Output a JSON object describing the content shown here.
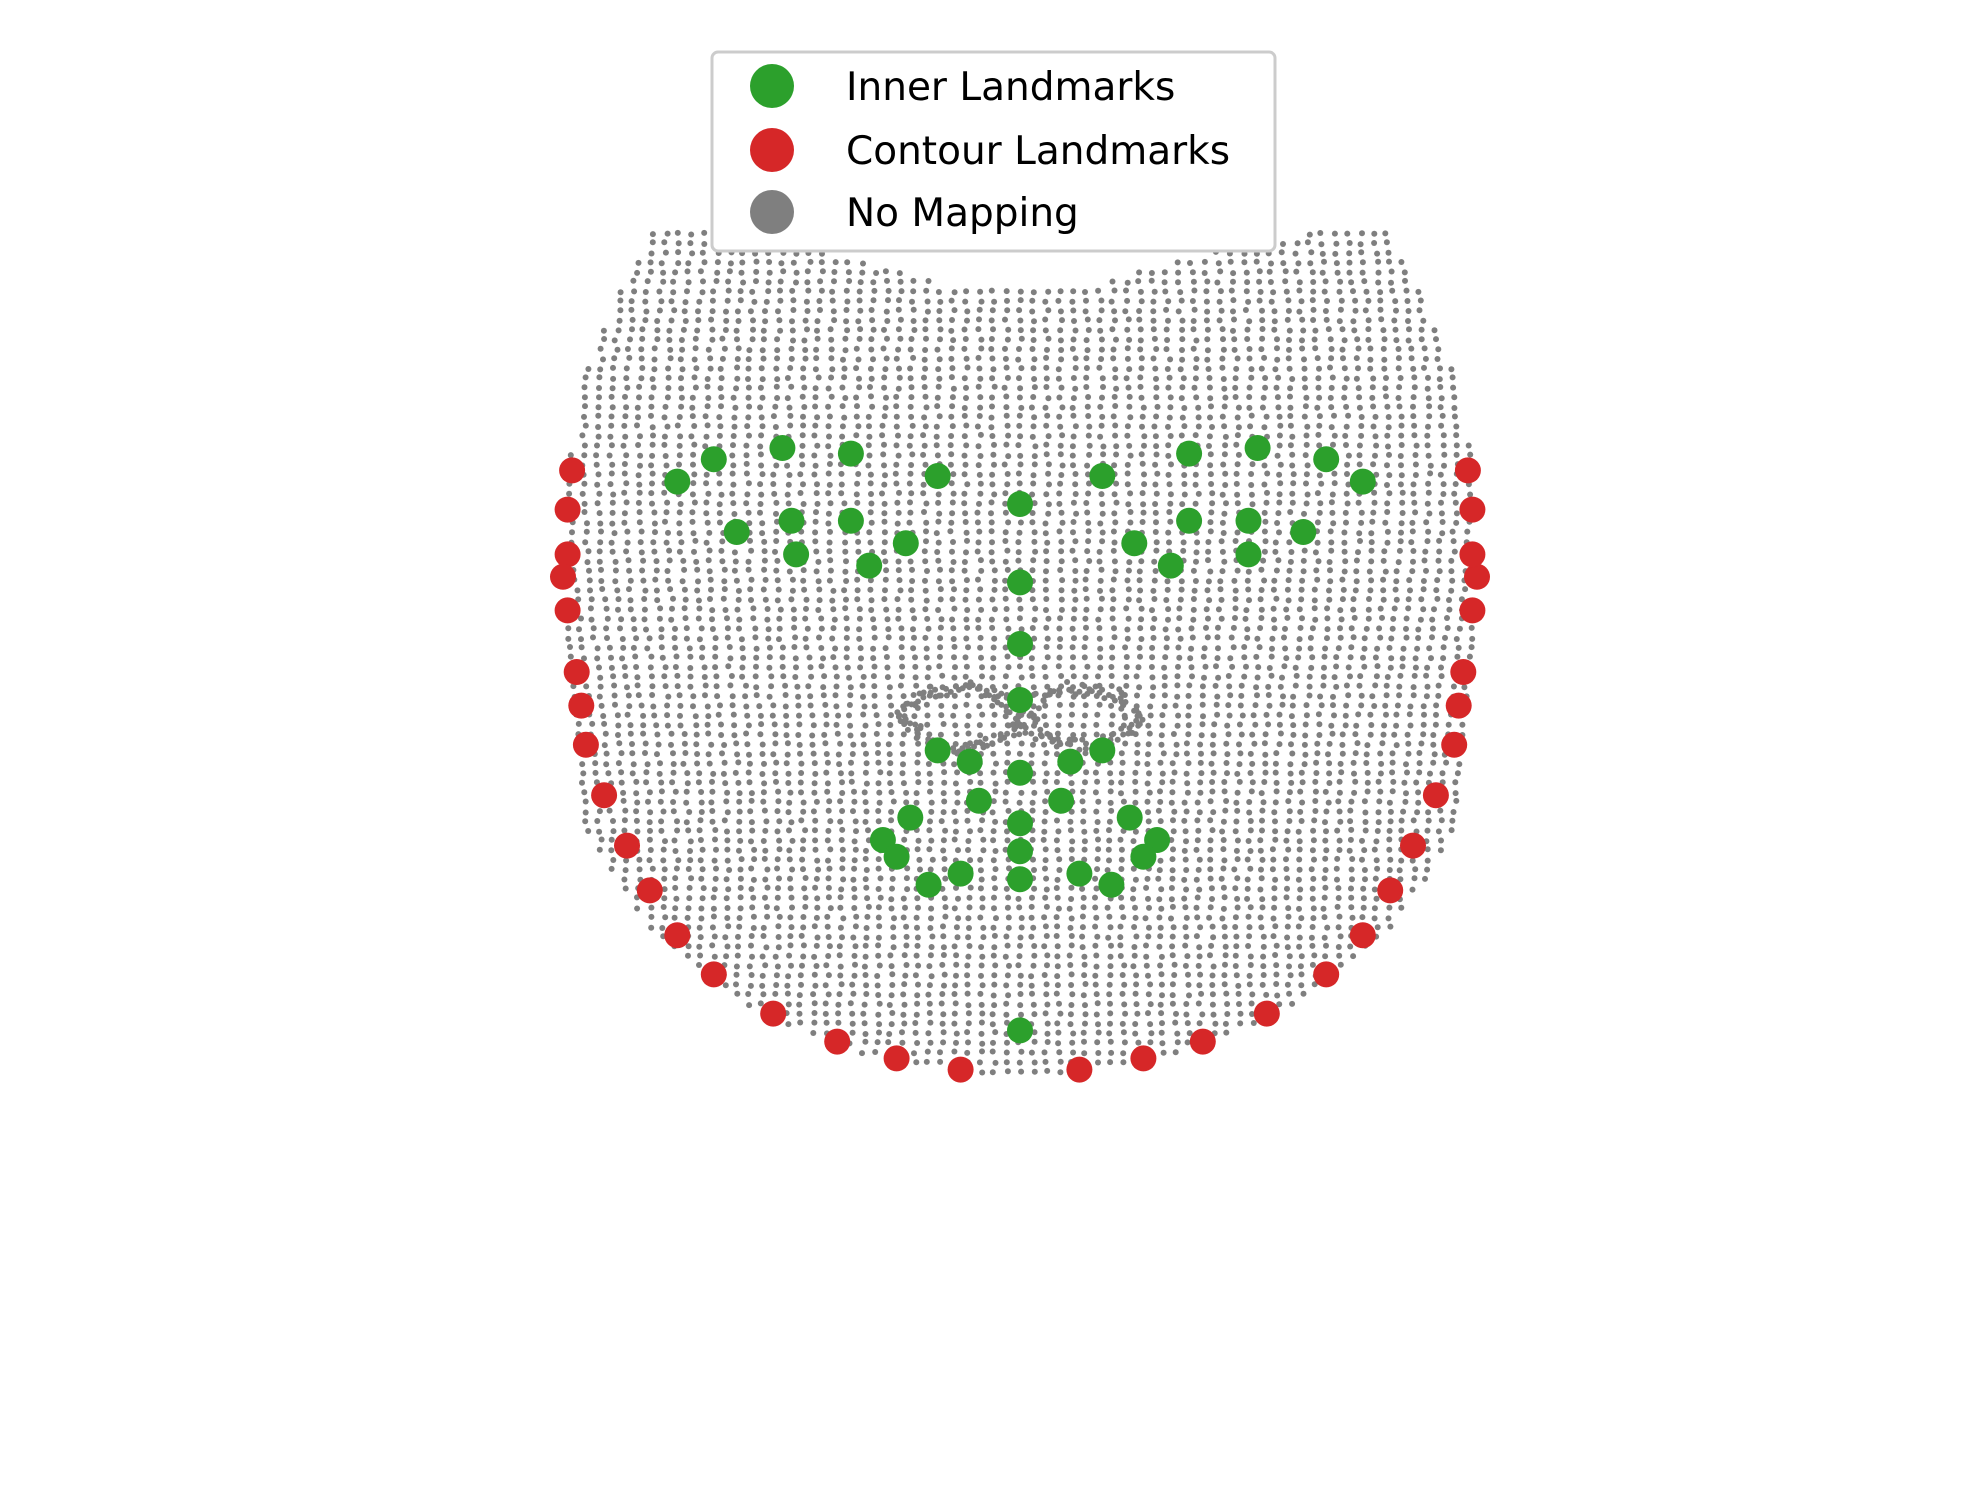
{
  "chart_data": {
    "type": "scatter",
    "title": "",
    "xlabel": "",
    "ylabel": "",
    "axes_visible": false,
    "grid": false,
    "legend_position": "top-center",
    "series": [
      {
        "name": "Inner Landmarks",
        "color": "#2ca02c",
        "points": [
          [
            -0.75,
            0.44
          ],
          [
            -0.67,
            0.48
          ],
          [
            -0.52,
            0.5
          ],
          [
            -0.37,
            0.49
          ],
          [
            -0.18,
            0.45
          ],
          [
            0.18,
            0.45
          ],
          [
            0.37,
            0.49
          ],
          [
            0.52,
            0.5
          ],
          [
            0.67,
            0.48
          ],
          [
            0.75,
            0.44
          ],
          [
            -0.62,
            0.35
          ],
          [
            -0.5,
            0.37
          ],
          [
            -0.37,
            0.37
          ],
          [
            -0.25,
            0.33
          ],
          [
            -0.33,
            0.29
          ],
          [
            -0.49,
            0.31
          ],
          [
            0.25,
            0.33
          ],
          [
            0.37,
            0.37
          ],
          [
            0.5,
            0.37
          ],
          [
            0.62,
            0.35
          ],
          [
            0.5,
            0.31
          ],
          [
            0.33,
            0.29
          ],
          [
            0.0,
            0.4
          ],
          [
            0.0,
            0.26
          ],
          [
            0.0,
            0.15
          ],
          [
            0.0,
            0.05
          ],
          [
            -0.18,
            -0.04
          ],
          [
            -0.11,
            -0.06
          ],
          [
            0.0,
            -0.08
          ],
          [
            0.11,
            -0.06
          ],
          [
            0.18,
            -0.04
          ],
          [
            -0.3,
            -0.2
          ],
          [
            -0.24,
            -0.16
          ],
          [
            -0.09,
            -0.13
          ],
          [
            0.0,
            -0.17
          ],
          [
            0.09,
            -0.13
          ],
          [
            0.24,
            -0.16
          ],
          [
            0.3,
            -0.2
          ],
          [
            -0.27,
            -0.23
          ],
          [
            -0.13,
            -0.26
          ],
          [
            0.0,
            -0.27
          ],
          [
            0.13,
            -0.26
          ],
          [
            0.27,
            -0.23
          ],
          [
            -0.2,
            -0.28
          ],
          [
            0.0,
            -0.22
          ],
          [
            0.2,
            -0.28
          ],
          [
            0.0,
            -0.54
          ]
        ]
      },
      {
        "name": "Contour Landmarks",
        "color": "#d62728",
        "points": [
          [
            -0.98,
            0.46
          ],
          [
            -0.99,
            0.39
          ],
          [
            -0.99,
            0.31
          ],
          [
            -1.0,
            0.27
          ],
          [
            -0.99,
            0.21
          ],
          [
            -0.97,
            0.1
          ],
          [
            -0.96,
            0.04
          ],
          [
            -0.95,
            -0.03
          ],
          [
            -0.91,
            -0.12
          ],
          [
            -0.86,
            -0.21
          ],
          [
            -0.81,
            -0.29
          ],
          [
            -0.75,
            -0.37
          ],
          [
            -0.67,
            -0.44
          ],
          [
            -0.54,
            -0.51
          ],
          [
            -0.4,
            -0.56
          ],
          [
            -0.27,
            -0.59
          ],
          [
            -0.13,
            -0.61
          ],
          [
            0.13,
            -0.61
          ],
          [
            0.27,
            -0.59
          ],
          [
            0.4,
            -0.56
          ],
          [
            0.54,
            -0.51
          ],
          [
            0.67,
            -0.44
          ],
          [
            0.75,
            -0.37
          ],
          [
            0.81,
            -0.29
          ],
          [
            0.86,
            -0.21
          ],
          [
            0.91,
            -0.12
          ],
          [
            0.95,
            -0.03
          ],
          [
            0.96,
            0.04
          ],
          [
            0.97,
            0.1
          ],
          [
            0.99,
            0.21
          ],
          [
            1.0,
            0.27
          ],
          [
            0.99,
            0.31
          ],
          [
            0.99,
            0.39
          ],
          [
            0.98,
            0.46
          ]
        ]
      },
      {
        "name": "No Mapping",
        "color": "#7f7f7f",
        "generator": "dense face-mesh vertex cloud"
      }
    ],
    "xlim": [
      -1.1,
      1.1
    ],
    "ylim": [
      -0.65,
      0.95
    ]
  }
}
